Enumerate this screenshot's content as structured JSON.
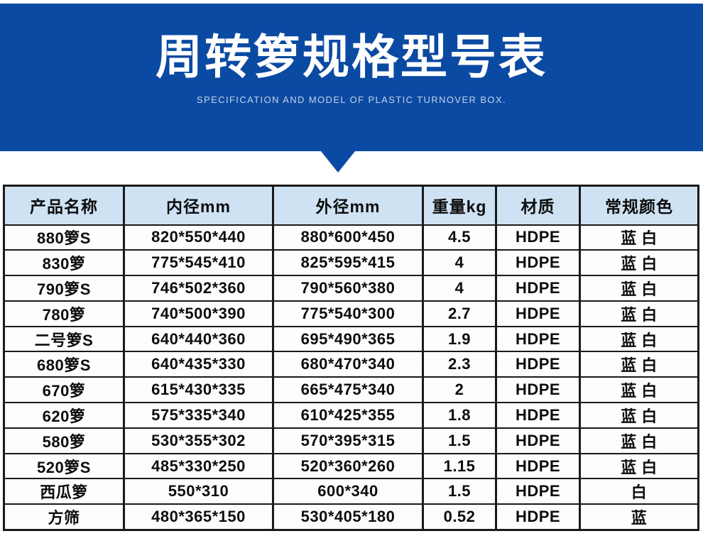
{
  "banner": {
    "title": "周转箩规格型号表",
    "subtitle": "SPECIFICATION AND MODEL OF PLASTIC TURNOVER BOX."
  },
  "colors": {
    "banner_blue": "#0b4aa2",
    "header_row_bg": "#cfe2f3",
    "table_border": "#1a1a1a",
    "title_text": "#ffffff"
  },
  "table": {
    "columns": [
      "产品名称",
      "内径mm",
      "外径mm",
      "重量kg",
      "材质",
      "常规颜色"
    ],
    "rows": [
      [
        "880箩S",
        "820*550*440",
        "880*600*450",
        "4.5",
        "HDPE",
        "蓝 白"
      ],
      [
        "830箩",
        "775*545*410",
        "825*595*415",
        "4",
        "HDPE",
        "蓝 白"
      ],
      [
        "790箩S",
        "746*502*360",
        "790*560*380",
        "4",
        "HDPE",
        "蓝 白"
      ],
      [
        "780箩",
        "740*500*390",
        "775*540*300",
        "2.7",
        "HDPE",
        "蓝 白"
      ],
      [
        "二号箩S",
        "640*440*360",
        "695*490*365",
        "1.9",
        "HDPE",
        "蓝 白"
      ],
      [
        "680箩S",
        "640*435*330",
        "680*470*340",
        "2.3",
        "HDPE",
        "蓝 白"
      ],
      [
        "670箩",
        "615*430*335",
        "665*475*340",
        "2",
        "HDPE",
        "蓝 白"
      ],
      [
        "620箩",
        "575*335*340",
        "610*425*355",
        "1.8",
        "HDPE",
        "蓝 白"
      ],
      [
        "580箩",
        "530*355*302",
        "570*395*315",
        "1.5",
        "HDPE",
        "蓝 白"
      ],
      [
        "520箩S",
        "485*330*250",
        "520*360*260",
        "1.15",
        "HDPE",
        "蓝 白"
      ],
      [
        "西瓜箩",
        "550*310",
        "600*340",
        "1.5",
        "HDPE",
        "白"
      ],
      [
        "方筛",
        "480*365*150",
        "530*405*180",
        "0.52",
        "HDPE",
        "蓝"
      ]
    ],
    "cell_names": [
      "cell-product-name",
      "cell-inner-size-mm",
      "cell-outer-size-mm",
      "cell-weight-kg",
      "cell-material",
      "cell-color"
    ]
  }
}
